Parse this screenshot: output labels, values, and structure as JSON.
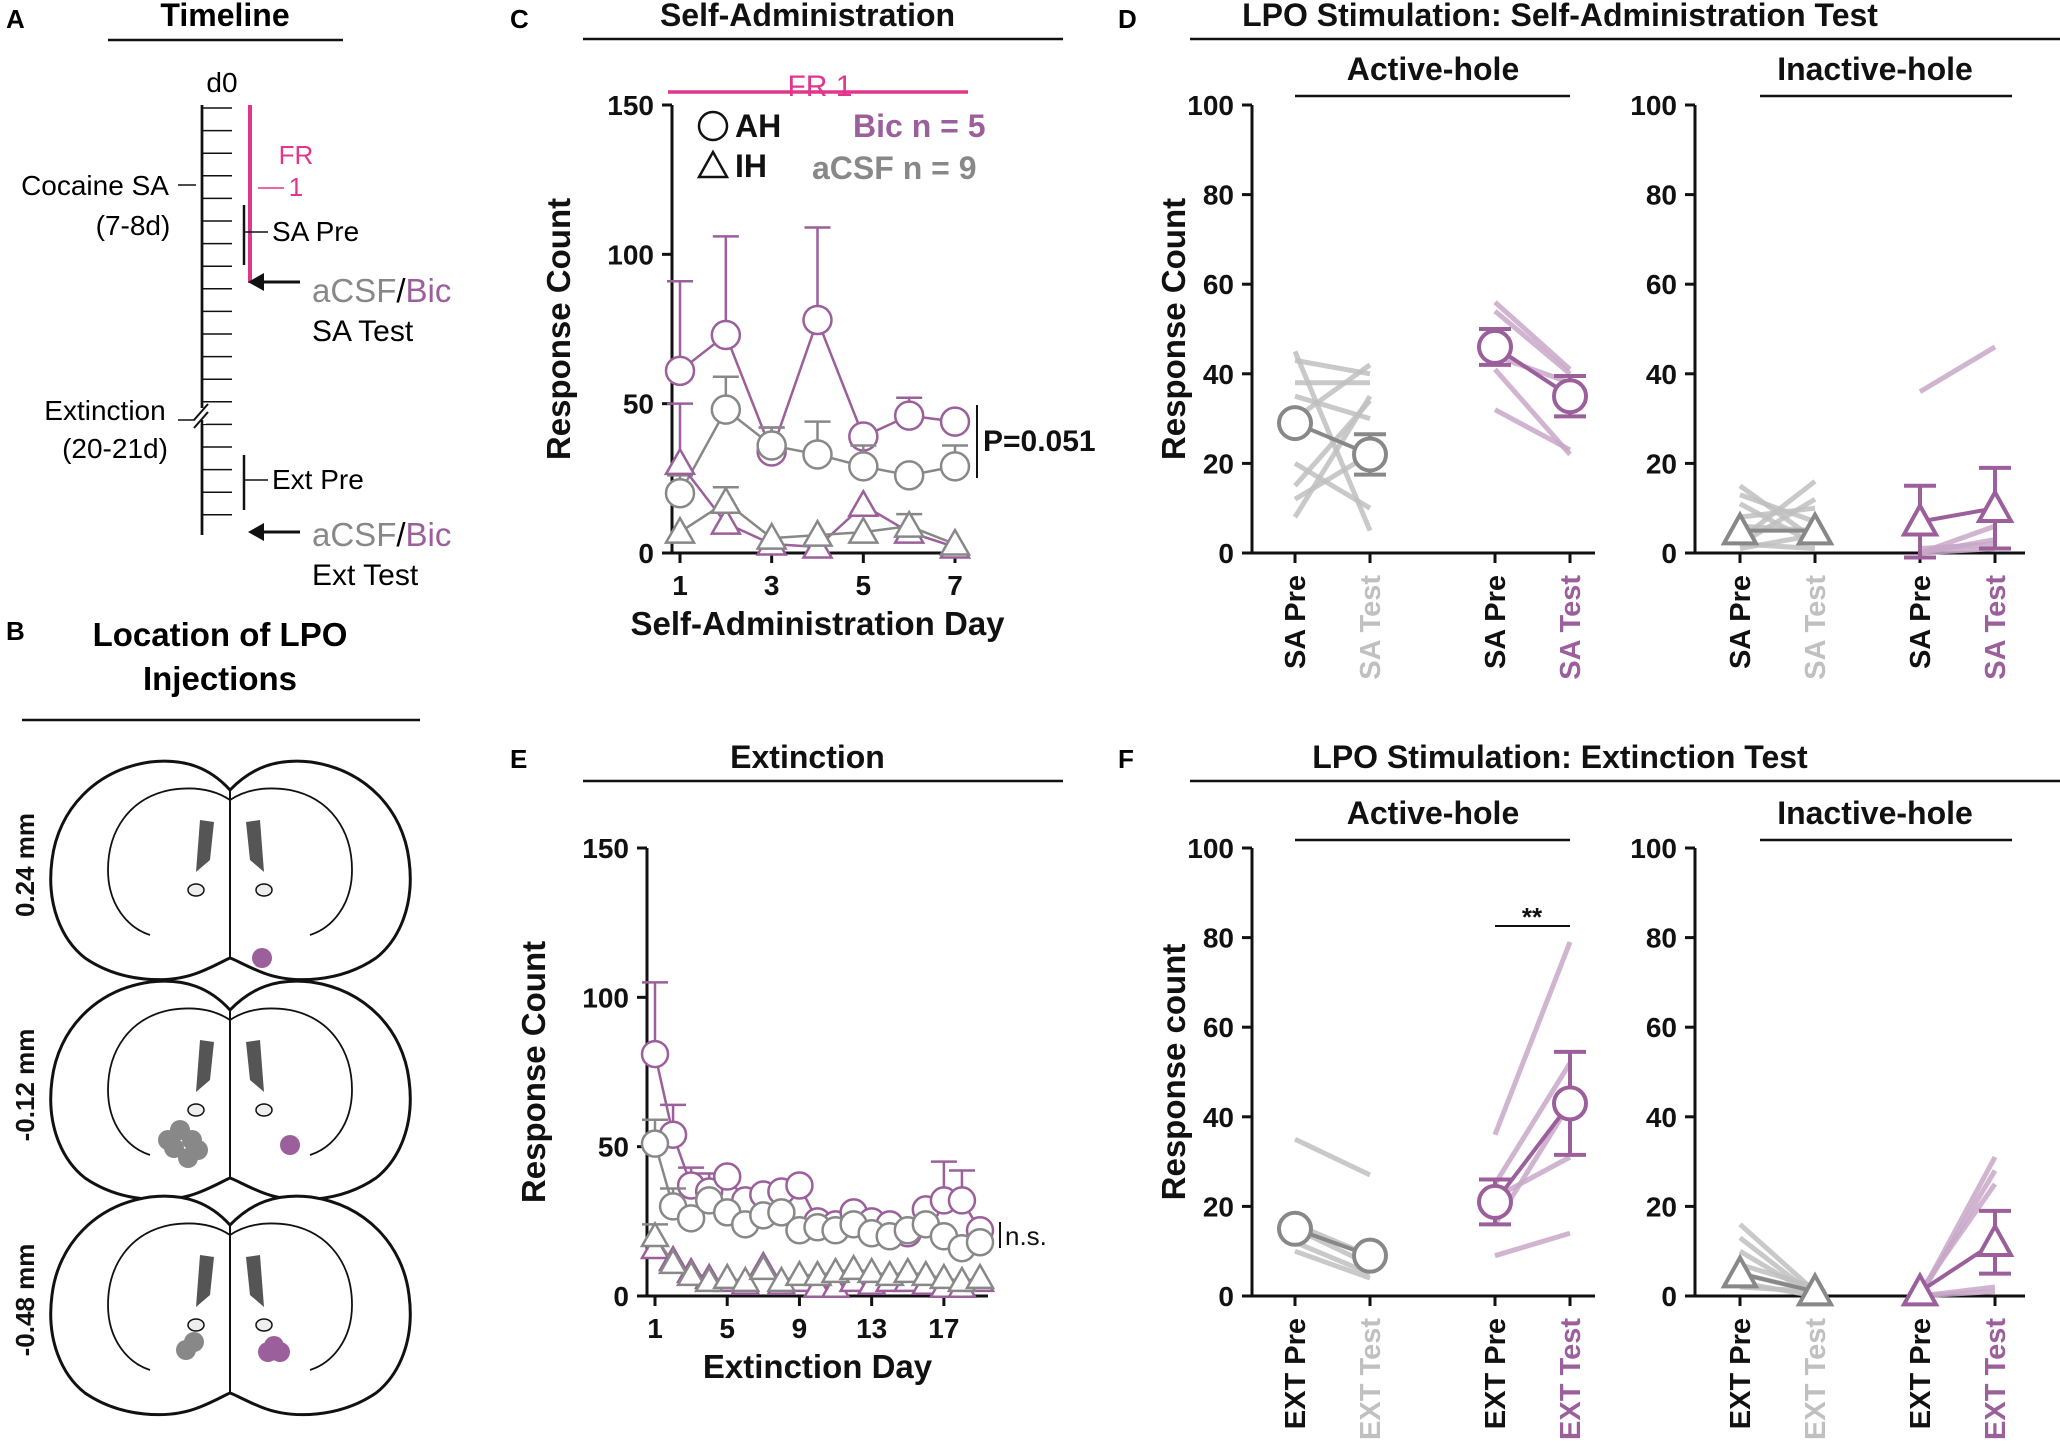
{
  "colors": {
    "bic": "#9b5f9b",
    "bic_light": "#c8a8c8",
    "acsf": "#888888",
    "acsf_light": "#c0c0c0",
    "fr": "#e0368c",
    "ink": "#111111"
  },
  "panel_labels": {
    "a": "A",
    "b": "B",
    "c": "C",
    "d": "D",
    "e": "E",
    "f": "F"
  },
  "timeline": {
    "title": "Timeline",
    "d0": "d0",
    "fr_line1": "FR",
    "fr_line2": "1",
    "cocaine_sa": "Cocaine SA",
    "cocaine_days": "(7-8d)",
    "sa_pre": "SA Pre",
    "acsf": "aCSF",
    "slash": "/",
    "bic": "Bic",
    "sa_test": "SA Test",
    "extinction": "Extinction",
    "extinction_days": "(20-21d)",
    "ext_pre": "Ext Pre",
    "ext_test": "Ext Test"
  },
  "brain": {
    "title_line1": "Location of LPO",
    "title_line2": "Injections",
    "levels": [
      "0.24 mm",
      "-0.12 mm",
      "-0.48 mm"
    ],
    "icon": "coronal-brain-section-icon"
  },
  "chart_data": [
    {
      "id": "C",
      "type": "line",
      "title": "Self-Administration",
      "xlabel": "Self-Administration Day",
      "ylabel": "Response Count",
      "ylim": [
        0,
        150
      ],
      "yticks": [
        0,
        50,
        100,
        150
      ],
      "xticks": [
        1,
        3,
        5,
        7
      ],
      "fr_label": "FR 1",
      "legend": {
        "ah": "AH",
        "ih": "IH",
        "bic": "Bic n = 5",
        "acsf": "aCSF n = 9"
      },
      "annotation": "P=0.051",
      "series": [
        {
          "name": "Bic AH",
          "group": "bic",
          "marker": "circle",
          "x": [
            1,
            2,
            3,
            4,
            5,
            6,
            7
          ],
          "y": [
            61,
            73,
            34,
            78,
            39,
            46,
            44
          ],
          "err": [
            30,
            33,
            8,
            31,
            0,
            6,
            0
          ]
        },
        {
          "name": "aCSF AH",
          "group": "acsf",
          "marker": "circle",
          "x": [
            1,
            2,
            3,
            4,
            5,
            6,
            7
          ],
          "y": [
            20,
            48,
            36,
            33,
            29,
            26,
            29
          ],
          "err": [
            6,
            11,
            6,
            11,
            7,
            0,
            7
          ]
        },
        {
          "name": "Bic IH",
          "group": "bic",
          "marker": "triangle",
          "x": [
            1,
            2,
            3,
            4,
            5,
            6,
            7
          ],
          "y": [
            30,
            10,
            3,
            2,
            16,
            7,
            2
          ],
          "err": [
            20,
            0,
            0,
            0,
            0,
            0,
            0
          ]
        },
        {
          "name": "aCSF IH",
          "group": "acsf",
          "marker": "triangle",
          "x": [
            1,
            2,
            3,
            4,
            5,
            6,
            7
          ],
          "y": [
            7,
            17,
            5,
            6,
            7,
            9,
            3
          ],
          "err": [
            0,
            5,
            0,
            0,
            0,
            4,
            0
          ]
        }
      ]
    },
    {
      "id": "E",
      "type": "line",
      "title": "Extinction",
      "xlabel": "Extinction Day",
      "ylabel": "Response Count",
      "ylim": [
        0,
        150
      ],
      "yticks": [
        0,
        50,
        100,
        150
      ],
      "xticks": [
        1,
        5,
        9,
        13,
        17
      ],
      "annotation": "n.s.",
      "series": [
        {
          "name": "Bic AH",
          "group": "bic",
          "marker": "circle",
          "x": [
            1,
            2,
            3,
            4,
            5,
            6,
            7,
            8,
            9,
            10,
            11,
            12,
            13,
            14,
            15,
            16,
            17,
            18,
            19
          ],
          "y": [
            81,
            54,
            37,
            35,
            40,
            32,
            34,
            35,
            37,
            25,
            24,
            28,
            25,
            24,
            21,
            29,
            32,
            32,
            22
          ],
          "err": [
            24,
            10,
            6,
            6,
            0,
            0,
            0,
            0,
            0,
            0,
            0,
            0,
            0,
            0,
            0,
            0,
            13,
            10,
            0
          ]
        },
        {
          "name": "aCSF AH",
          "group": "acsf",
          "marker": "circle",
          "x": [
            1,
            2,
            3,
            4,
            5,
            6,
            7,
            8,
            9,
            10,
            11,
            12,
            13,
            14,
            15,
            16,
            17,
            18,
            19
          ],
          "y": [
            51,
            30,
            26,
            32,
            28,
            24,
            27,
            28,
            22,
            23,
            22,
            24,
            21,
            20,
            22,
            24,
            20,
            16,
            18
          ],
          "err": [
            8,
            6,
            0,
            0,
            0,
            0,
            0,
            0,
            0,
            0,
            0,
            0,
            0,
            0,
            0,
            0,
            0,
            0,
            0
          ]
        },
        {
          "name": "Bic IH",
          "group": "bic",
          "marker": "triangle",
          "x": [
            1,
            2,
            3,
            4,
            5,
            6,
            7,
            8,
            9,
            10,
            11,
            12,
            13,
            14,
            15,
            16,
            17,
            18,
            19
          ],
          "y": [
            16,
            12,
            8,
            6,
            5,
            4,
            10,
            4,
            5,
            3,
            3,
            5,
            4,
            5,
            5,
            4,
            3,
            3,
            5
          ],
          "err": [
            0,
            0,
            0,
            0,
            0,
            0,
            0,
            0,
            0,
            0,
            0,
            0,
            0,
            0,
            0,
            0,
            0,
            0,
            0
          ]
        },
        {
          "name": "aCSF IH",
          "group": "acsf",
          "marker": "triangle",
          "x": [
            1,
            2,
            3,
            4,
            5,
            6,
            7,
            8,
            9,
            10,
            11,
            12,
            13,
            14,
            15,
            16,
            17,
            18,
            19
          ],
          "y": [
            20,
            11,
            7,
            5,
            6,
            5,
            9,
            5,
            7,
            7,
            8,
            9,
            8,
            7,
            8,
            7,
            6,
            5,
            6
          ],
          "err": [
            4,
            0,
            0,
            0,
            0,
            0,
            0,
            0,
            0,
            0,
            0,
            0,
            0,
            0,
            0,
            0,
            0,
            0,
            0
          ]
        }
      ]
    },
    {
      "id": "D",
      "type": "paired",
      "title": "LPO Stimulation: Self-Administration Test",
      "ylabel": "Response Count",
      "ylim": [
        0,
        100
      ],
      "yticks": [
        0,
        20,
        40,
        60,
        80,
        100
      ],
      "subpanels": [
        {
          "title": "Active-hole",
          "groups": [
            {
              "group": "acsf",
              "marker": "circle",
              "labels": [
                "SA Pre",
                "SA Test"
              ],
              "mean": [
                29,
                22
              ],
              "sem": [
                0,
                4.5
              ],
              "lines": [
                [
                  45,
                  5
                ],
                [
                  43,
                  40
                ],
                [
                  38,
                  38
                ],
                [
                  35,
                  30
                ],
                [
                  30,
                  42
                ],
                [
                  20,
                  10
                ],
                [
                  15,
                  34
                ],
                [
                  12,
                  22
                ],
                [
                  8,
                  35
                ]
              ]
            },
            {
              "group": "bic",
              "marker": "circle",
              "labels": [
                "SA Pre",
                "SA Test"
              ],
              "mean": [
                46,
                35
              ],
              "sem": [
                4,
                4.5
              ],
              "lines": [
                [
                  56,
                  41
                ],
                [
                  54,
                  40
                ],
                [
                  44,
                  38
                ],
                [
                  41,
                  22
                ],
                [
                  32,
                  23
                ]
              ]
            }
          ]
        },
        {
          "title": "Inactive-hole",
          "groups": [
            {
              "group": "acsf",
              "marker": "triangle",
              "labels": [
                "SA Pre",
                "SA Test"
              ],
              "mean": [
                5,
                5
              ],
              "sem": [
                0,
                0
              ],
              "lines": [
                [
                  15,
                  3
                ],
                [
                  13,
                  7
                ],
                [
                  11,
                  2
                ],
                [
                  8,
                  10
                ],
                [
                  6,
                  5
                ],
                [
                  3,
                  16
                ],
                [
                  2,
                  12
                ],
                [
                  2,
                  1
                ],
                [
                  1,
                  4
                ]
              ]
            },
            {
              "group": "bic",
              "marker": "triangle",
              "labels": [
                "SA Pre",
                "SA Test"
              ],
              "mean": [
                7,
                10
              ],
              "sem": [
                8,
                9
              ],
              "lines": [
                [
                  36,
                  46
                ],
                [
                  0,
                  3
                ],
                [
                  0,
                  6
                ],
                [
                  0,
                  1
                ],
                [
                  1,
                  2
                ]
              ]
            }
          ]
        }
      ]
    },
    {
      "id": "F",
      "type": "paired",
      "title": "LPO Stimulation: Extinction Test",
      "ylabel": "Response count",
      "ylim": [
        0,
        100
      ],
      "yticks": [
        0,
        20,
        40,
        60,
        80,
        100
      ],
      "annotation": "**",
      "subpanels": [
        {
          "title": "Active-hole",
          "groups": [
            {
              "group": "acsf",
              "marker": "circle",
              "labels": [
                "EXT Pre",
                "EXT Test"
              ],
              "mean": [
                15,
                9
              ],
              "sem": [
                0,
                0
              ],
              "lines": [
                [
                  35,
                  27
                ],
                [
                  16,
                  9
                ],
                [
                  15,
                  7
                ],
                [
                  12,
                  5
                ],
                [
                  10,
                  4
                ]
              ]
            },
            {
              "group": "bic",
              "marker": "circle",
              "labels": [
                "EXT Pre",
                "EXT Test"
              ],
              "mean": [
                21,
                43
              ],
              "sem": [
                5,
                11.5
              ],
              "lines": [
                [
                  36,
                  79
                ],
                [
                  25,
                  52
                ],
                [
                  22,
                  31
                ],
                [
                  16,
                  43
                ],
                [
                  9,
                  14
                ]
              ]
            }
          ]
        },
        {
          "title": "Inactive-hole",
          "groups": [
            {
              "group": "acsf",
              "marker": "triangle",
              "labels": [
                "EXT Pre",
                "EXT Test"
              ],
              "mean": [
                5,
                1
              ],
              "sem": [
                0,
                0
              ],
              "lines": [
                [
                  16,
                  1
                ],
                [
                  13,
                  0
                ],
                [
                  10,
                  0
                ],
                [
                  7,
                  2
                ],
                [
                  5,
                  1
                ],
                [
                  3,
                  0
                ],
                [
                  2,
                  1
                ]
              ]
            },
            {
              "group": "bic",
              "marker": "triangle",
              "labels": [
                "EXT Pre",
                "EXT Test"
              ],
              "mean": [
                1,
                12
              ],
              "sem": [
                0,
                7
              ],
              "lines": [
                [
                  0,
                  31
                ],
                [
                  0,
                  28
                ],
                [
                  1,
                  25
                ],
                [
                  0,
                  2
                ],
                [
                  0,
                  1
                ]
              ]
            }
          ]
        }
      ]
    }
  ]
}
